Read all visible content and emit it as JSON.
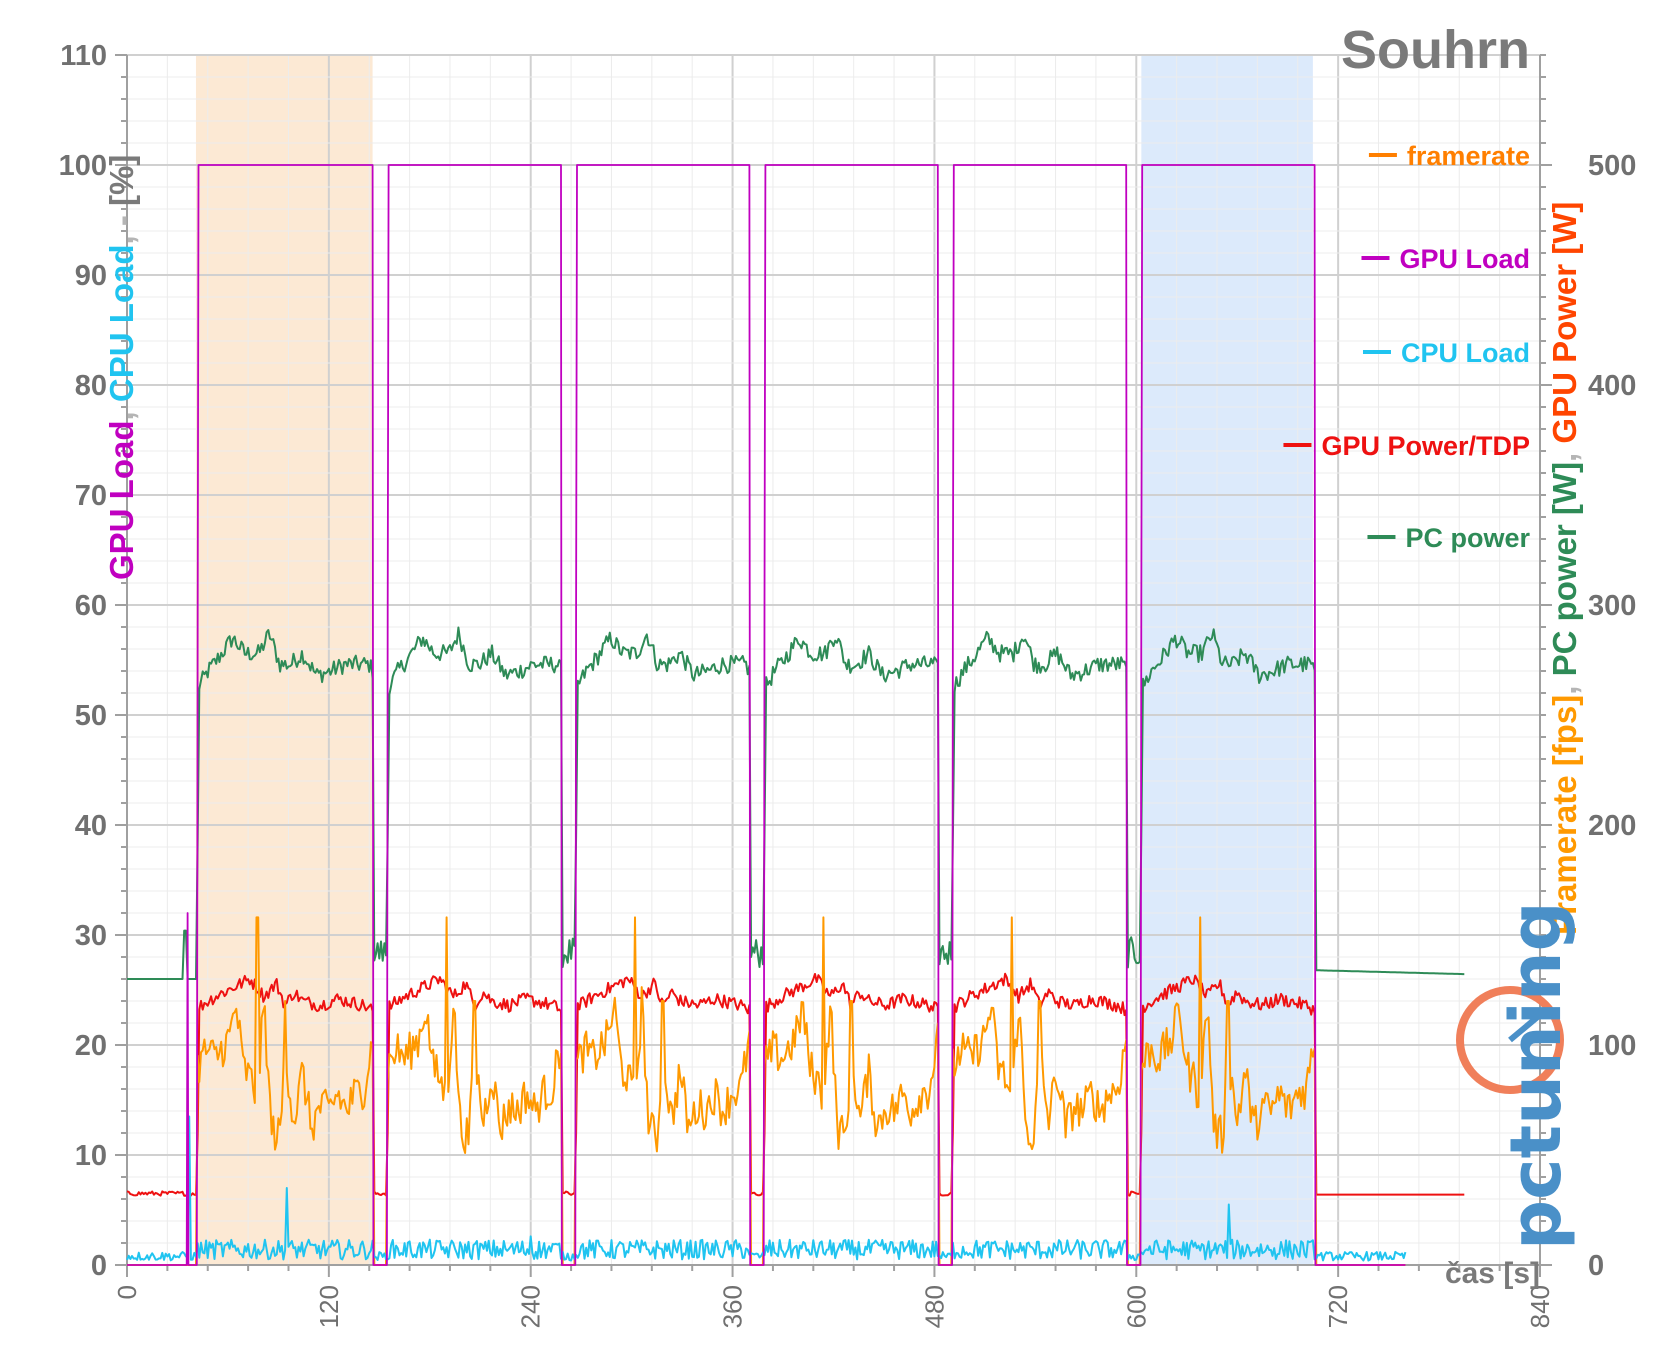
{
  "chart_data": {
    "type": "line",
    "title": "Souhrn",
    "xlabel": "čas [s]",
    "ylabel_left": {
      "parts": [
        {
          "text": "GPU Load",
          "color": "#c000c0"
        },
        {
          "text": ", ",
          "color": "#b5b5b5"
        },
        {
          "text": "CPU Load",
          "color": "#20c4f0"
        },
        {
          "text": ", ",
          "color": "#b5b5b5"
        },
        {
          "text": "-",
          "color": "#b5b5b5"
        },
        {
          "text": " [%]",
          "color": "#7a7a7a"
        }
      ]
    },
    "ylabel_right": {
      "parts": [
        {
          "text": "Framerate [fps]",
          "color": "#ff9900"
        },
        {
          "text": ", ",
          "color": "#b5b5b5"
        },
        {
          "text": "PC power [W]",
          "color": "#2e8b57"
        },
        {
          "text": ", ",
          "color": "#b5b5b5"
        },
        {
          "text": "GPU Power [W]",
          "color": "#ff4500"
        }
      ]
    },
    "xlim": [
      0,
      840
    ],
    "ylim_left": [
      0,
      110
    ],
    "ylim_right": [
      0,
      550
    ],
    "x_ticks": [
      "0",
      "120",
      "240",
      "360",
      "480",
      "600",
      "720",
      "840"
    ],
    "y_ticks_left": [
      "0",
      "10",
      "20",
      "30",
      "40",
      "50",
      "60",
      "70",
      "80",
      "90",
      "100",
      "110"
    ],
    "y_ticks_right": [
      "0",
      "100",
      "200",
      "300",
      "400",
      "500"
    ],
    "grid": true,
    "legend_position": "right",
    "highlight_bands": [
      {
        "x0": 41,
        "x1": 146,
        "color": "#fce5cd"
      },
      {
        "x0": 603,
        "x1": 705,
        "color": "#d6e6fa"
      }
    ],
    "runs": [
      {
        "start": 42,
        "end": 146
      },
      {
        "start": 155,
        "end": 258
      },
      {
        "start": 267,
        "end": 370
      },
      {
        "start": 379,
        "end": 482
      },
      {
        "start": 491,
        "end": 594
      },
      {
        "start": 603,
        "end": 706
      }
    ],
    "series": [
      {
        "name": "framerate",
        "axis": "right",
        "color": "#ff9900",
        "idle": 0,
        "load_mean": 80,
        "profile": [
          [
            0,
            90
          ],
          [
            0.05,
            98
          ],
          [
            0.1,
            94
          ],
          [
            0.18,
            103
          ],
          [
            0.22,
            118
          ],
          [
            0.26,
            90
          ],
          [
            0.3,
            85
          ],
          [
            0.34,
            75
          ],
          [
            0.38,
            120
          ],
          [
            0.42,
            62
          ],
          [
            0.47,
            58
          ],
          [
            0.5,
            98
          ],
          [
            0.55,
            65
          ],
          [
            0.6,
            88
          ],
          [
            0.65,
            62
          ],
          [
            0.7,
            72
          ],
          [
            0.75,
            70
          ],
          [
            0.8,
            78
          ],
          [
            0.85,
            70
          ],
          [
            0.9,
            78
          ],
          [
            0.95,
            80
          ],
          [
            1,
            102
          ]
        ],
        "peaks": [
          [
            0.34,
            158
          ],
          [
            0.5,
            120
          ]
        ]
      },
      {
        "name": "GPU Load",
        "axis": "left",
        "color": "#c000c0",
        "idle": 0,
        "load_mean": 100,
        "pre_spike": [
          36,
          32
        ]
      },
      {
        "name": "CPU Load",
        "axis": "left",
        "color": "#20c4f0",
        "idle": 0.4,
        "load_mean": 1.4,
        "spikes": [
          [
            37,
            13.5
          ],
          [
            95,
            7
          ],
          [
            240,
            2.6
          ],
          [
            655,
            5.5
          ]
        ]
      },
      {
        "name": "GPU Power/TDP",
        "axis": "right",
        "color": "#ee1111",
        "idle": 31.5,
        "tail": 32,
        "profile": [
          [
            0,
            117
          ],
          [
            0.1,
            122
          ],
          [
            0.2,
            126
          ],
          [
            0.3,
            130
          ],
          [
            0.38,
            122
          ],
          [
            0.45,
            128
          ],
          [
            0.5,
            118
          ],
          [
            0.55,
            124
          ],
          [
            0.6,
            120
          ],
          [
            0.7,
            118
          ],
          [
            0.8,
            121
          ],
          [
            0.9,
            119
          ],
          [
            0.95,
            118
          ],
          [
            1,
            116
          ]
        ]
      },
      {
        "name": "PC power",
        "axis": "right",
        "color": "#2e8b57",
        "idle": 130,
        "tail": 134,
        "pre_spike": [
          34,
          152
        ],
        "profile": [
          [
            0,
            262
          ],
          [
            0.06,
            270
          ],
          [
            0.12,
            276
          ],
          [
            0.2,
            285
          ],
          [
            0.27,
            278
          ],
          [
            0.35,
            278
          ],
          [
            0.41,
            287
          ],
          [
            0.47,
            273
          ],
          [
            0.53,
            273
          ],
          [
            0.6,
            278
          ],
          [
            0.68,
            268
          ],
          [
            0.76,
            270
          ],
          [
            0.84,
            273
          ],
          [
            0.92,
            273
          ],
          [
            0.98,
            273
          ],
          [
            1,
            270
          ]
        ]
      }
    ],
    "legend": [
      {
        "label": "framerate",
        "color": "#ff7f00"
      },
      {
        "label": "GPU Load",
        "color": "#c000c0"
      },
      {
        "label": "CPU Load",
        "color": "#20c4f0"
      },
      {
        "label": "GPU Power/TDP",
        "color": "#ee1111"
      },
      {
        "label": "PC power",
        "color": "#2e8b57"
      }
    ]
  },
  "logo": {
    "text": "pctuning",
    "color_main": "#4a90c8",
    "color_accent": "#f07f5a"
  }
}
